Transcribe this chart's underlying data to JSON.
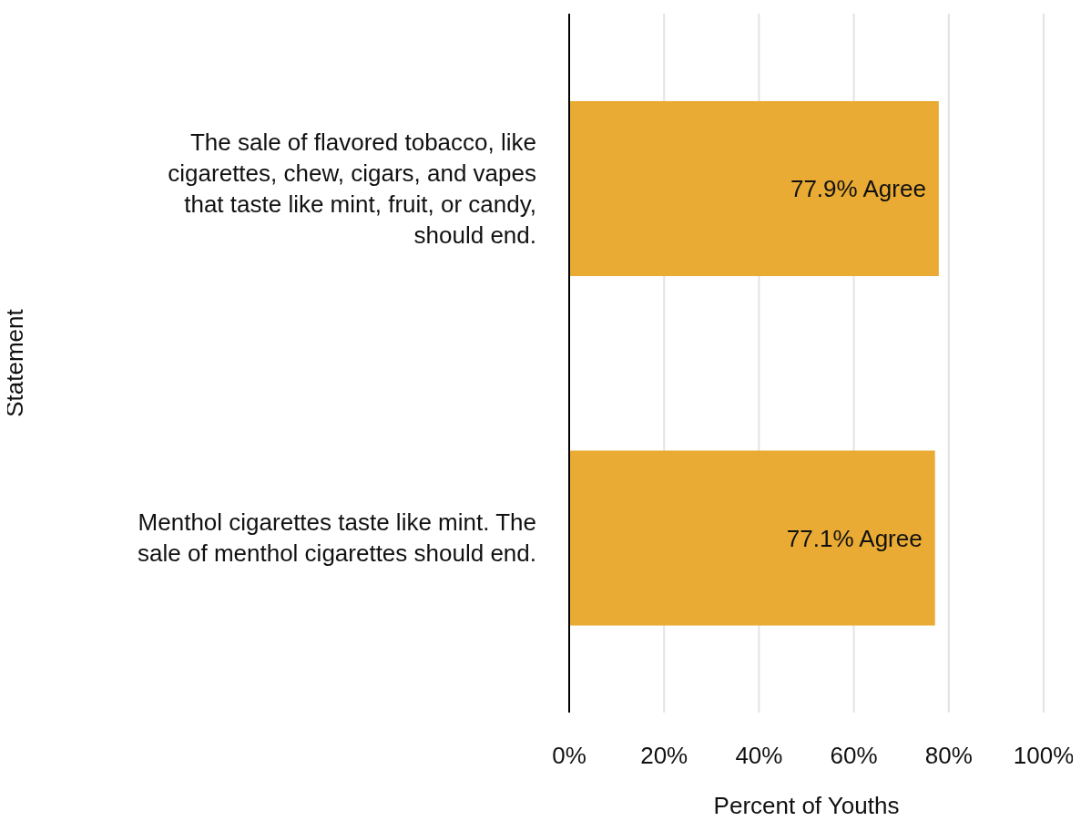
{
  "chart_data": {
    "type": "bar",
    "orientation": "horizontal",
    "xlabel": "Percent of Youths",
    "ylabel": "Statement",
    "categories": [
      "The sale of flavored tobacco, like cigarettes, chew, cigars, and vapes that taste like mint, fruit, or candy, should end.",
      "Menthol cigarettes taste like mint. The sale of menthol cigarettes should end."
    ],
    "values": [
      77.9,
      77.1
    ],
    "color": "#e9ab34",
    "value_labels": [
      "77.9% Agree",
      "77.1% Agree"
    ],
    "xlim": [
      0,
      100
    ],
    "xticks": [
      {
        "value": 0,
        "label": "0%"
      },
      {
        "value": 20,
        "label": "20%"
      },
      {
        "value": 40,
        "label": "40%"
      },
      {
        "value": 60,
        "label": "60%"
      },
      {
        "value": 80,
        "label": "80%"
      },
      {
        "value": 100,
        "label": "100%"
      }
    ],
    "grid": "x",
    "legend": false
  }
}
